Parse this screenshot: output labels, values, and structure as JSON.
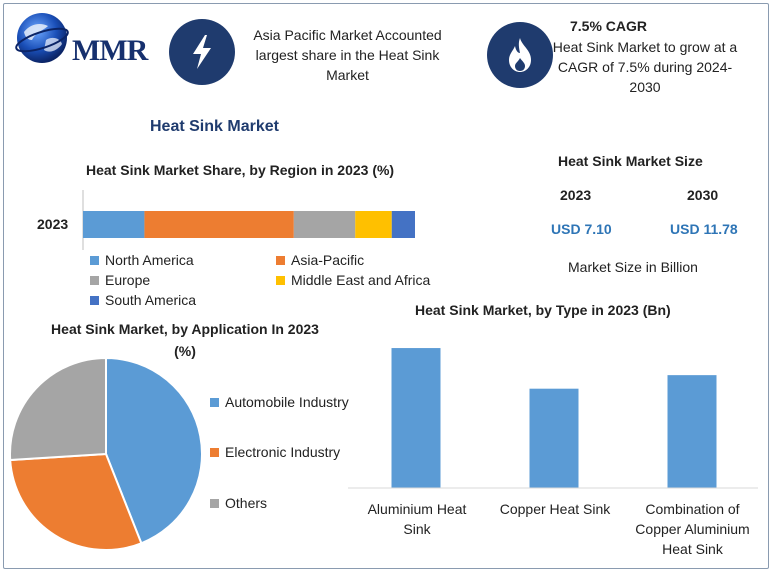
{
  "logo": {
    "text": "MMR"
  },
  "highlights": [
    {
      "icon": "lightning-icon",
      "text": "Asia Pacific Market Accounted largest share in the Heat Sink Market"
    },
    {
      "icon": "flame-icon",
      "title": "7.5% CAGR",
      "text": "Heat Sink Market to grow at a CAGR of 7.5% during 2024-2030"
    }
  ],
  "main_title": "Heat Sink Market",
  "market_size": {
    "title": "Heat Sink Market Size",
    "years": [
      "2023",
      "2030"
    ],
    "values": [
      "USD 7.10",
      "USD 11.78"
    ],
    "unit_note": "Market Size in Billion"
  },
  "colors": {
    "north_america": "#5b9bd5",
    "asia_pacific": "#ed7d31",
    "europe": "#a5a5a5",
    "middle_east_africa": "#ffc000",
    "south_america": "#4472c4",
    "type_bars": "#5b9bd5",
    "title_blue": "#1f3b6e",
    "usd_blue": "#2e75b6"
  },
  "chart_data": [
    {
      "type": "bar",
      "stacked": true,
      "orientation": "horizontal",
      "title": "Heat Sink Market Share, by Region in 2023 (%)",
      "categories": [
        "2023"
      ],
      "series": [
        {
          "name": "North America",
          "values": [
            18.5
          ],
          "color": "#5b9bd5"
        },
        {
          "name": "Asia-Pacific",
          "values": [
            45
          ],
          "color": "#ed7d31"
        },
        {
          "name": "Europe",
          "values": [
            18.5
          ],
          "color": "#a5a5a5"
        },
        {
          "name": "Middle East and Africa",
          "values": [
            11
          ],
          "color": "#ffc000"
        },
        {
          "name": "South America",
          "values": [
            7
          ],
          "color": "#4472c4"
        }
      ],
      "xlim": [
        0,
        100
      ],
      "legend": "bottom"
    },
    {
      "type": "pie",
      "title": "Heat Sink Market, by Application In 2023 (%)",
      "labels": [
        "Automobile Industry",
        "Electronic Industry",
        "Others"
      ],
      "values": [
        44,
        30,
        26
      ],
      "colors": [
        "#5b9bd5",
        "#ed7d31",
        "#a5a5a5"
      ],
      "legend": "right"
    },
    {
      "type": "bar",
      "title": "Heat Sink Market, by Type in 2023 (Bn)",
      "categories": [
        "Aluminium Heat Sink",
        "Copper Heat Sink",
        "Combination of Copper Aluminium Heat Sink"
      ],
      "values": [
        3.1,
        2.2,
        2.5
      ],
      "ylim": [
        0,
        3.5
      ],
      "grid": false
    }
  ]
}
